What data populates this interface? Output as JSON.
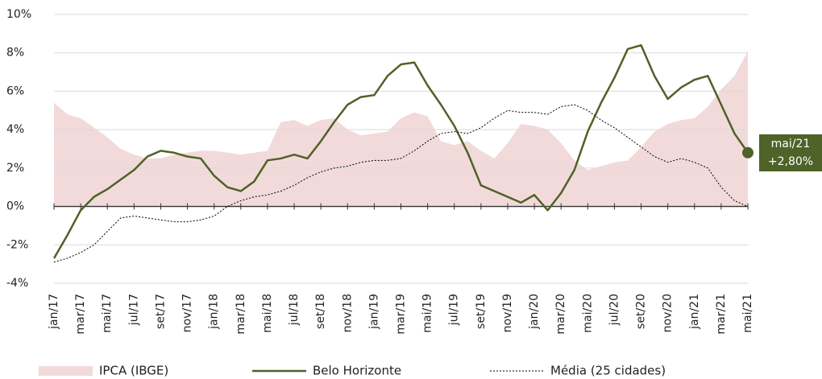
{
  "chart_data": {
    "type": "line",
    "categories": [
      "jan/17",
      null,
      "mar/17",
      null,
      "mai/17",
      null,
      "jul/17",
      null,
      "set/17",
      null,
      "nov/17",
      null,
      "jan/18",
      null,
      "mar/18",
      null,
      "mai/18",
      null,
      "jul/18",
      null,
      "set/18",
      null,
      "nov/18",
      null,
      "jan/19",
      null,
      "mar/19",
      null,
      "mai/19",
      null,
      "jul/19",
      null,
      "set/19",
      null,
      "nov/19",
      null,
      "jan/20",
      null,
      "mar/20",
      null,
      "mai/20",
      null,
      "jul/20",
      null,
      "set/20",
      null,
      "nov/20",
      null,
      "jan/21",
      null,
      "mar/21",
      null,
      "mai/21"
    ],
    "series": [
      {
        "name": "IPCA (IBGE)",
        "color": "#f2dada",
        "style": "area",
        "values": [
          5.4,
          4.8,
          4.6,
          4.1,
          3.6,
          3.0,
          2.7,
          2.5,
          2.5,
          2.7,
          2.8,
          2.9,
          2.9,
          2.8,
          2.7,
          2.8,
          2.9,
          4.4,
          4.5,
          4.2,
          4.5,
          4.6,
          4.0,
          3.7,
          3.8,
          3.9,
          4.6,
          4.9,
          4.7,
          3.4,
          3.2,
          3.4,
          2.9,
          2.5,
          3.3,
          4.3,
          4.2,
          4.0,
          3.3,
          2.4,
          1.9,
          2.1,
          2.3,
          2.4,
          3.1,
          3.9,
          4.3,
          4.5,
          4.6,
          5.2,
          6.1,
          6.8,
          8.1
        ]
      },
      {
        "name": "Belo Horizonte",
        "color": "#4f6228",
        "style": "solid",
        "values": [
          -2.7,
          -1.5,
          -0.2,
          0.5,
          0.9,
          1.4,
          1.9,
          2.6,
          2.9,
          2.8,
          2.6,
          2.5,
          1.6,
          1.0,
          0.8,
          1.3,
          2.4,
          2.5,
          2.7,
          2.5,
          3.4,
          4.4,
          5.3,
          5.7,
          5.8,
          6.8,
          7.4,
          7.5,
          6.3,
          5.3,
          4.2,
          2.8,
          1.1,
          0.8,
          0.5,
          0.2,
          0.6,
          -0.2,
          0.7,
          1.9,
          3.9,
          5.4,
          6.7,
          8.2,
          8.4,
          6.8,
          5.6,
          6.2,
          6.6,
          6.8,
          5.3,
          3.8,
          2.8
        ]
      },
      {
        "name": "Média (25 cidades)",
        "color": "#000000",
        "style": "dotted",
        "values": [
          -2.9,
          -2.7,
          -2.4,
          -2.0,
          -1.3,
          -0.6,
          -0.5,
          -0.6,
          -0.7,
          -0.8,
          -0.8,
          -0.7,
          -0.5,
          0.0,
          0.3,
          0.5,
          0.6,
          0.8,
          1.1,
          1.5,
          1.8,
          2.0,
          2.1,
          2.3,
          2.4,
          2.4,
          2.5,
          2.9,
          3.4,
          3.8,
          3.9,
          3.8,
          4.1,
          4.6,
          5.0,
          4.9,
          4.9,
          4.8,
          5.2,
          5.3,
          5.0,
          4.5,
          4.1,
          3.6,
          3.1,
          2.6,
          2.3,
          2.5,
          2.3,
          2.0,
          1.0,
          0.3,
          0.0
        ]
      }
    ],
    "annotation": "+2,80%",
    "ylim": [
      -4,
      10
    ],
    "yticks": [
      {
        "value": -4,
        "label": "-4%"
      },
      {
        "value": -2,
        "label": "-2%"
      },
      {
        "value": 0,
        "label": "0%"
      },
      {
        "value": 2,
        "label": "2%"
      },
      {
        "value": 4,
        "label": "4%"
      },
      {
        "value": 6,
        "label": "6%"
      },
      {
        "value": 8,
        "label": "8%"
      },
      {
        "value": 10,
        "label": "10%"
      }
    ],
    "grid": true,
    "legend": "bottom"
  }
}
